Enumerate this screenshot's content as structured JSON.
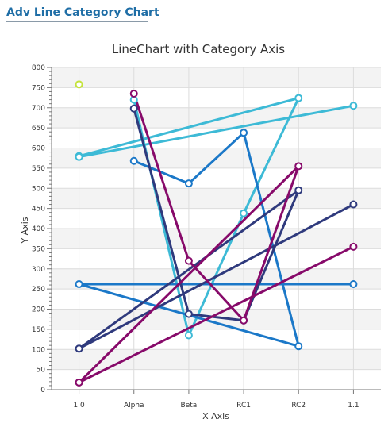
{
  "app": {
    "title": "Adv Line Category Chart"
  },
  "chart_data": {
    "type": "line",
    "title": "LineChart with Category Axis",
    "xlabel": "X Axis",
    "ylabel": "Y Axis",
    "ylim": [
      0,
      800
    ],
    "y_major_step": 50,
    "y_minor_step": 10,
    "categories": [
      "1.0",
      "Alpha",
      "Beta",
      "RC1",
      "RC2",
      "1.1"
    ],
    "grid": true,
    "legend": "none",
    "series": [
      {
        "color": "#c4e33b",
        "points": [
          [
            "1.0",
            758
          ]
        ]
      },
      {
        "color": "#3dbad6",
        "points": [
          [
            "1.0",
            580
          ],
          [
            "RC2",
            724
          ],
          [
            "RC1",
            438
          ],
          [
            "Beta",
            135
          ],
          [
            "Alpha",
            720
          ]
        ]
      },
      {
        "color": "#3dbad6",
        "points": [
          [
            "1.0",
            578
          ],
          [
            "1.1",
            705
          ]
        ]
      },
      {
        "color": "#1b78c8",
        "points": [
          [
            "Alpha",
            568
          ],
          [
            "Beta",
            512
          ],
          [
            "RC1",
            638
          ],
          [
            "RC2",
            108
          ],
          [
            "1.0",
            262
          ],
          [
            "1.1",
            262
          ]
        ]
      },
      {
        "color": "#2f3a7d",
        "points": [
          [
            "1.0",
            102
          ],
          [
            "RC2",
            495
          ],
          [
            "RC1",
            172
          ],
          [
            "Beta",
            188
          ],
          [
            "Alpha",
            698
          ]
        ]
      },
      {
        "color": "#2f3a7d",
        "points": [
          [
            "1.0",
            102
          ],
          [
            "1.1",
            460
          ]
        ]
      },
      {
        "color": "#870a6a",
        "points": [
          [
            "Alpha",
            735
          ],
          [
            "Beta",
            320
          ],
          [
            "RC1",
            172
          ],
          [
            "RC2",
            555
          ],
          [
            "1.0",
            18
          ]
        ]
      },
      {
        "color": "#870a6a",
        "points": [
          [
            "1.0",
            18
          ],
          [
            "1.1",
            355
          ]
        ]
      }
    ]
  }
}
